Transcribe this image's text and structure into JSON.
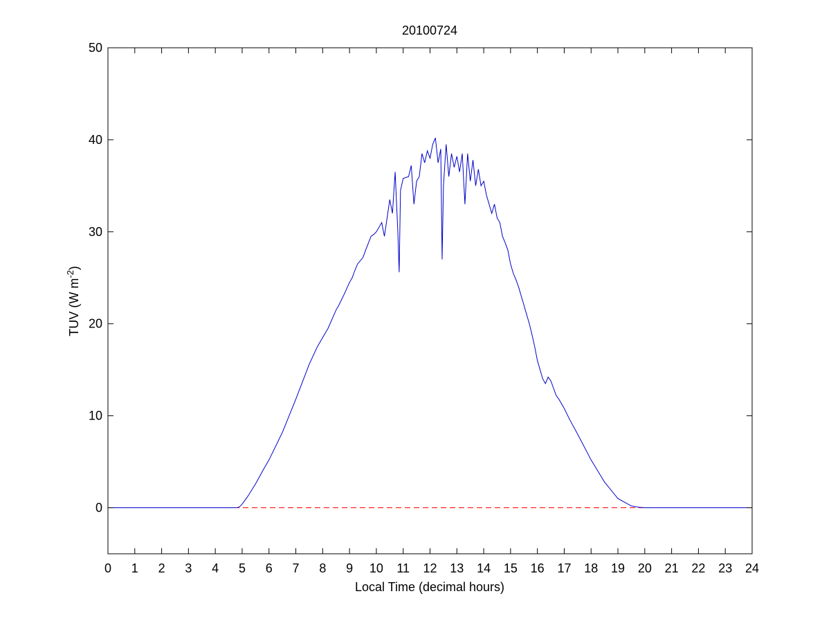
{
  "chart_data": {
    "type": "line",
    "title": "20100724",
    "xlabel": "Local Time (decimal hours)",
    "ylabel": {
      "main": "TUV (W m",
      "superscript": "-2",
      "close": ")"
    },
    "xlim": [
      0,
      24
    ],
    "ylim": [
      -5,
      50
    ],
    "xticks": [
      0,
      1,
      2,
      3,
      4,
      5,
      6,
      7,
      8,
      9,
      10,
      11,
      12,
      13,
      14,
      15,
      16,
      17,
      18,
      19,
      20,
      21,
      22,
      23,
      24
    ],
    "yticks": [
      0,
      10,
      20,
      30,
      40,
      50
    ],
    "grid": false,
    "legend": "none",
    "series": [
      {
        "color": "#0000c8",
        "style": "solid",
        "x": [
          0,
          4.8,
          4.9,
          5.0,
          5.2,
          5.5,
          5.8,
          6.0,
          6.5,
          7.0,
          7.5,
          7.8,
          8.0,
          8.2,
          8.5,
          8.6,
          8.8,
          9.0,
          9.1,
          9.2,
          9.3,
          9.5,
          9.6,
          9.8,
          9.9,
          10.0,
          10.2,
          10.3,
          10.4,
          10.5,
          10.6,
          10.7,
          10.8,
          10.85,
          10.9,
          11.0,
          11.2,
          11.3,
          11.4,
          11.5,
          11.6,
          11.7,
          11.8,
          11.9,
          12.0,
          12.1,
          12.2,
          12.3,
          12.4,
          12.45,
          12.5,
          12.6,
          12.7,
          12.8,
          12.9,
          13.0,
          13.1,
          13.2,
          13.3,
          13.4,
          13.5,
          13.6,
          13.7,
          13.8,
          13.9,
          14.0,
          14.1,
          14.2,
          14.3,
          14.4,
          14.5,
          14.6,
          14.7,
          14.8,
          14.9,
          15.0,
          15.1,
          15.2,
          15.3,
          15.4,
          15.5,
          15.6,
          15.7,
          15.8,
          15.9,
          16.0,
          16.1,
          16.2,
          16.3,
          16.4,
          16.5,
          16.6,
          16.7,
          16.8,
          17.0,
          17.2,
          17.5,
          18.0,
          18.5,
          19.0,
          19.5,
          19.8,
          20.0,
          24
        ],
        "y": [
          0,
          0,
          0.1,
          0.4,
          1.2,
          2.6,
          4.2,
          5.2,
          8.2,
          11.8,
          15.6,
          17.5,
          18.5,
          19.5,
          21.5,
          22.0,
          23.2,
          24.5,
          25.0,
          25.8,
          26.5,
          27.2,
          28.0,
          29.5,
          29.7,
          30.0,
          31.0,
          29.5,
          31.5,
          33.5,
          32.0,
          36.5,
          30.0,
          25.6,
          34.5,
          35.8,
          36.0,
          37.2,
          33.0,
          35.5,
          36.0,
          38.5,
          37.5,
          38.8,
          38.0,
          39.5,
          40.2,
          37.5,
          39.0,
          27.0,
          35.0,
          39.5,
          36.0,
          38.5,
          37.0,
          38.2,
          36.5,
          38.5,
          33.0,
          38.5,
          35.5,
          37.8,
          35.0,
          36.8,
          35.0,
          35.5,
          34.0,
          33.0,
          32.0,
          33.0,
          31.5,
          31.0,
          29.5,
          28.8,
          28.0,
          26.5,
          25.5,
          24.8,
          24.0,
          23.0,
          22.0,
          21.0,
          20.0,
          18.8,
          17.5,
          16.0,
          15.0,
          14.0,
          13.5,
          14.2,
          13.8,
          13.0,
          12.2,
          11.8,
          10.8,
          9.6,
          8.0,
          5.2,
          2.8,
          1.0,
          0.2,
          0.05,
          0,
          0
        ]
      },
      {
        "color": "#ff0000",
        "style": "dashed",
        "x": [
          0,
          24
        ],
        "y": [
          0,
          0
        ]
      }
    ]
  }
}
